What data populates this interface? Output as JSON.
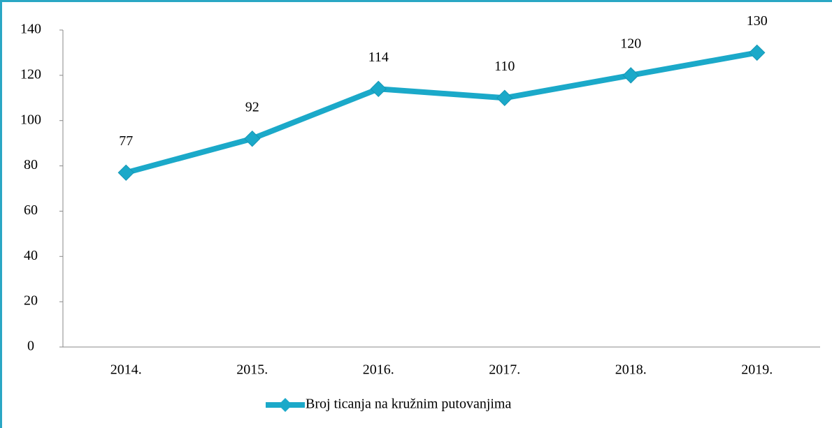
{
  "chart_data": {
    "type": "line",
    "categories": [
      "2014.",
      "2015.",
      "2016.",
      "2017.",
      "2018.",
      "2019."
    ],
    "series": [
      {
        "name": "Broj ticanja na kružnim putovanjima",
        "color": "#1ba9c9",
        "values": [
          77,
          92,
          114,
          110,
          120,
          130
        ]
      }
    ],
    "ylim": [
      0,
      140
    ],
    "yticks": [
      0,
      20,
      40,
      60,
      80,
      100,
      120,
      140
    ],
    "grid": false,
    "legend": "bottom",
    "data_labels": true
  }
}
